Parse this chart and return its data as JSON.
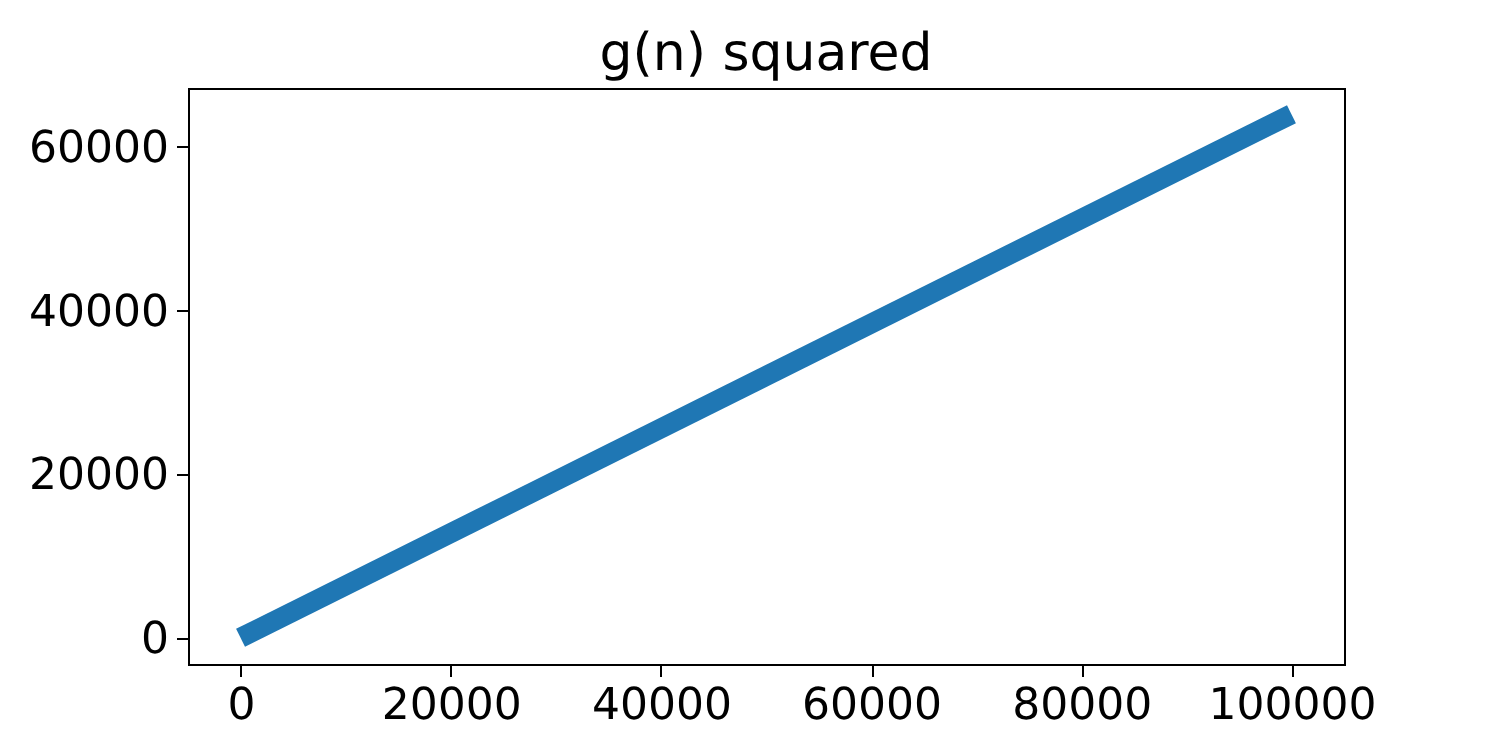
{
  "chart_data": {
    "type": "line",
    "title": "g(n) squared",
    "x": [
      0,
      50000,
      100000
    ],
    "series": [
      {
        "color": "#1f77b4",
        "values": [
          0,
          32000,
          64000
        ]
      }
    ],
    "xlim": [
      -5000,
      105000
    ],
    "xticks": [
      0,
      20000,
      40000,
      60000,
      80000,
      100000
    ],
    "ylim": [
      -3200,
      67200
    ],
    "yticks": [
      0,
      20000,
      40000,
      60000
    ],
    "grid": false,
    "line_style": "solid",
    "marker": "none"
  }
}
